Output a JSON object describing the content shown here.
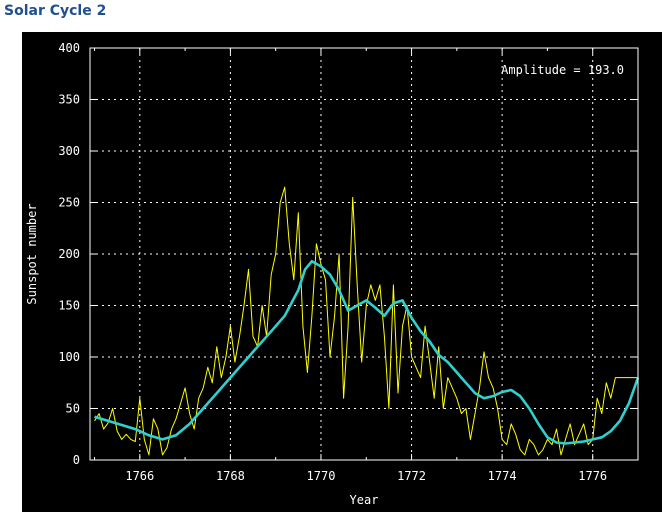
{
  "page": {
    "title": "Solar Cycle 2"
  },
  "colors": {
    "background": "#000000",
    "raw_series": "#ffff00",
    "smoothed_series": "#2fd0d0",
    "grid": "#ffffff",
    "title": "#1f4f8f"
  },
  "chart_data": {
    "type": "line",
    "title": "",
    "xlabel": "Year",
    "ylabel": "Sunspot number",
    "xlim": [
      1764.9,
      1777.0
    ],
    "ylim": [
      0,
      400
    ],
    "xticks": [
      1766,
      1768,
      1770,
      1772,
      1774,
      1776
    ],
    "yticks": [
      0,
      50,
      100,
      150,
      200,
      250,
      300,
      350,
      400
    ],
    "grid": true,
    "annotation": "Amplitude = 193.0",
    "series": [
      {
        "kind": "monthly",
        "x": [
          1765.0,
          1765.1,
          1765.2,
          1765.3,
          1765.4,
          1765.5,
          1765.6,
          1765.7,
          1765.8,
          1765.9,
          1766.0,
          1766.1,
          1766.2,
          1766.3,
          1766.4,
          1766.5,
          1766.6,
          1766.7,
          1766.8,
          1766.9,
          1767.0,
          1767.1,
          1767.2,
          1767.3,
          1767.4,
          1767.5,
          1767.6,
          1767.7,
          1767.8,
          1767.9,
          1768.0,
          1768.1,
          1768.2,
          1768.3,
          1768.4,
          1768.5,
          1768.6,
          1768.7,
          1768.8,
          1768.9,
          1769.0,
          1769.1,
          1769.2,
          1769.3,
          1769.4,
          1769.5,
          1769.6,
          1769.7,
          1769.8,
          1769.9,
          1770.0,
          1770.1,
          1770.2,
          1770.3,
          1770.4,
          1770.5,
          1770.6,
          1770.7,
          1770.8,
          1770.9,
          1771.0,
          1771.1,
          1771.2,
          1771.3,
          1771.4,
          1771.5,
          1771.6,
          1771.7,
          1771.8,
          1771.9,
          1772.0,
          1772.1,
          1772.2,
          1772.3,
          1772.4,
          1772.5,
          1772.6,
          1772.7,
          1772.8,
          1772.9,
          1773.0,
          1773.1,
          1773.2,
          1773.3,
          1773.4,
          1773.5,
          1773.6,
          1773.7,
          1773.8,
          1773.9,
          1774.0,
          1774.1,
          1774.2,
          1774.3,
          1774.4,
          1774.5,
          1774.6,
          1774.7,
          1774.8,
          1774.9,
          1775.0,
          1775.1,
          1775.2,
          1775.3,
          1775.4,
          1775.5,
          1775.6,
          1775.7,
          1775.8,
          1775.9,
          1776.0,
          1776.1,
          1776.2,
          1776.3,
          1776.4,
          1776.5,
          1776.6,
          1776.7,
          1776.8,
          1776.9,
          1777.0
        ],
        "y": [
          38,
          45,
          30,
          36,
          50,
          28,
          20,
          25,
          20,
          18,
          60,
          20,
          5,
          40,
          30,
          5,
          12,
          30,
          40,
          55,
          70,
          45,
          30,
          60,
          70,
          90,
          75,
          110,
          80,
          100,
          130,
          95,
          120,
          150,
          185,
          120,
          110,
          150,
          120,
          180,
          200,
          250,
          265,
          210,
          175,
          240,
          130,
          85,
          140,
          210,
          190,
          175,
          100,
          140,
          200,
          60,
          130,
          255,
          170,
          95,
          150,
          170,
          155,
          170,
          120,
          50,
          170,
          65,
          130,
          150,
          100,
          90,
          80,
          130,
          95,
          60,
          110,
          50,
          80,
          70,
          60,
          45,
          50,
          20,
          45,
          70,
          105,
          80,
          70,
          50,
          20,
          15,
          35,
          25,
          10,
          5,
          20,
          15,
          5,
          10,
          20,
          15,
          30,
          5,
          20,
          35,
          15,
          25,
          35,
          15,
          20,
          60,
          45,
          75,
          60,
          80,
          80,
          80,
          80,
          80,
          80
        ]
      },
      {
        "kind": "smoothed",
        "x": [
          1765.0,
          1765.3,
          1765.6,
          1765.9,
          1766.2,
          1766.5,
          1766.8,
          1767.1,
          1767.4,
          1767.7,
          1768.0,
          1768.3,
          1768.6,
          1768.9,
          1769.2,
          1769.5,
          1769.65,
          1769.8,
          1770.0,
          1770.2,
          1770.4,
          1770.6,
          1770.8,
          1771.0,
          1771.2,
          1771.4,
          1771.6,
          1771.8,
          1772.0,
          1772.2,
          1772.4,
          1772.6,
          1772.8,
          1773.0,
          1773.2,
          1773.4,
          1773.6,
          1773.8,
          1774.0,
          1774.2,
          1774.4,
          1774.6,
          1774.8,
          1775.0,
          1775.2,
          1775.4,
          1775.6,
          1775.8,
          1776.0,
          1776.2,
          1776.4,
          1776.6,
          1776.8,
          1777.0
        ],
        "y": [
          42,
          38,
          34,
          30,
          24,
          20,
          24,
          35,
          50,
          65,
          80,
          95,
          110,
          125,
          140,
          165,
          185,
          193,
          188,
          180,
          165,
          145,
          150,
          155,
          148,
          140,
          152,
          155,
          138,
          125,
          115,
          102,
          95,
          85,
          75,
          65,
          60,
          62,
          66,
          68,
          62,
          50,
          35,
          22,
          17,
          16,
          17,
          18,
          20,
          22,
          28,
          38,
          55,
          80
        ]
      }
    ]
  }
}
